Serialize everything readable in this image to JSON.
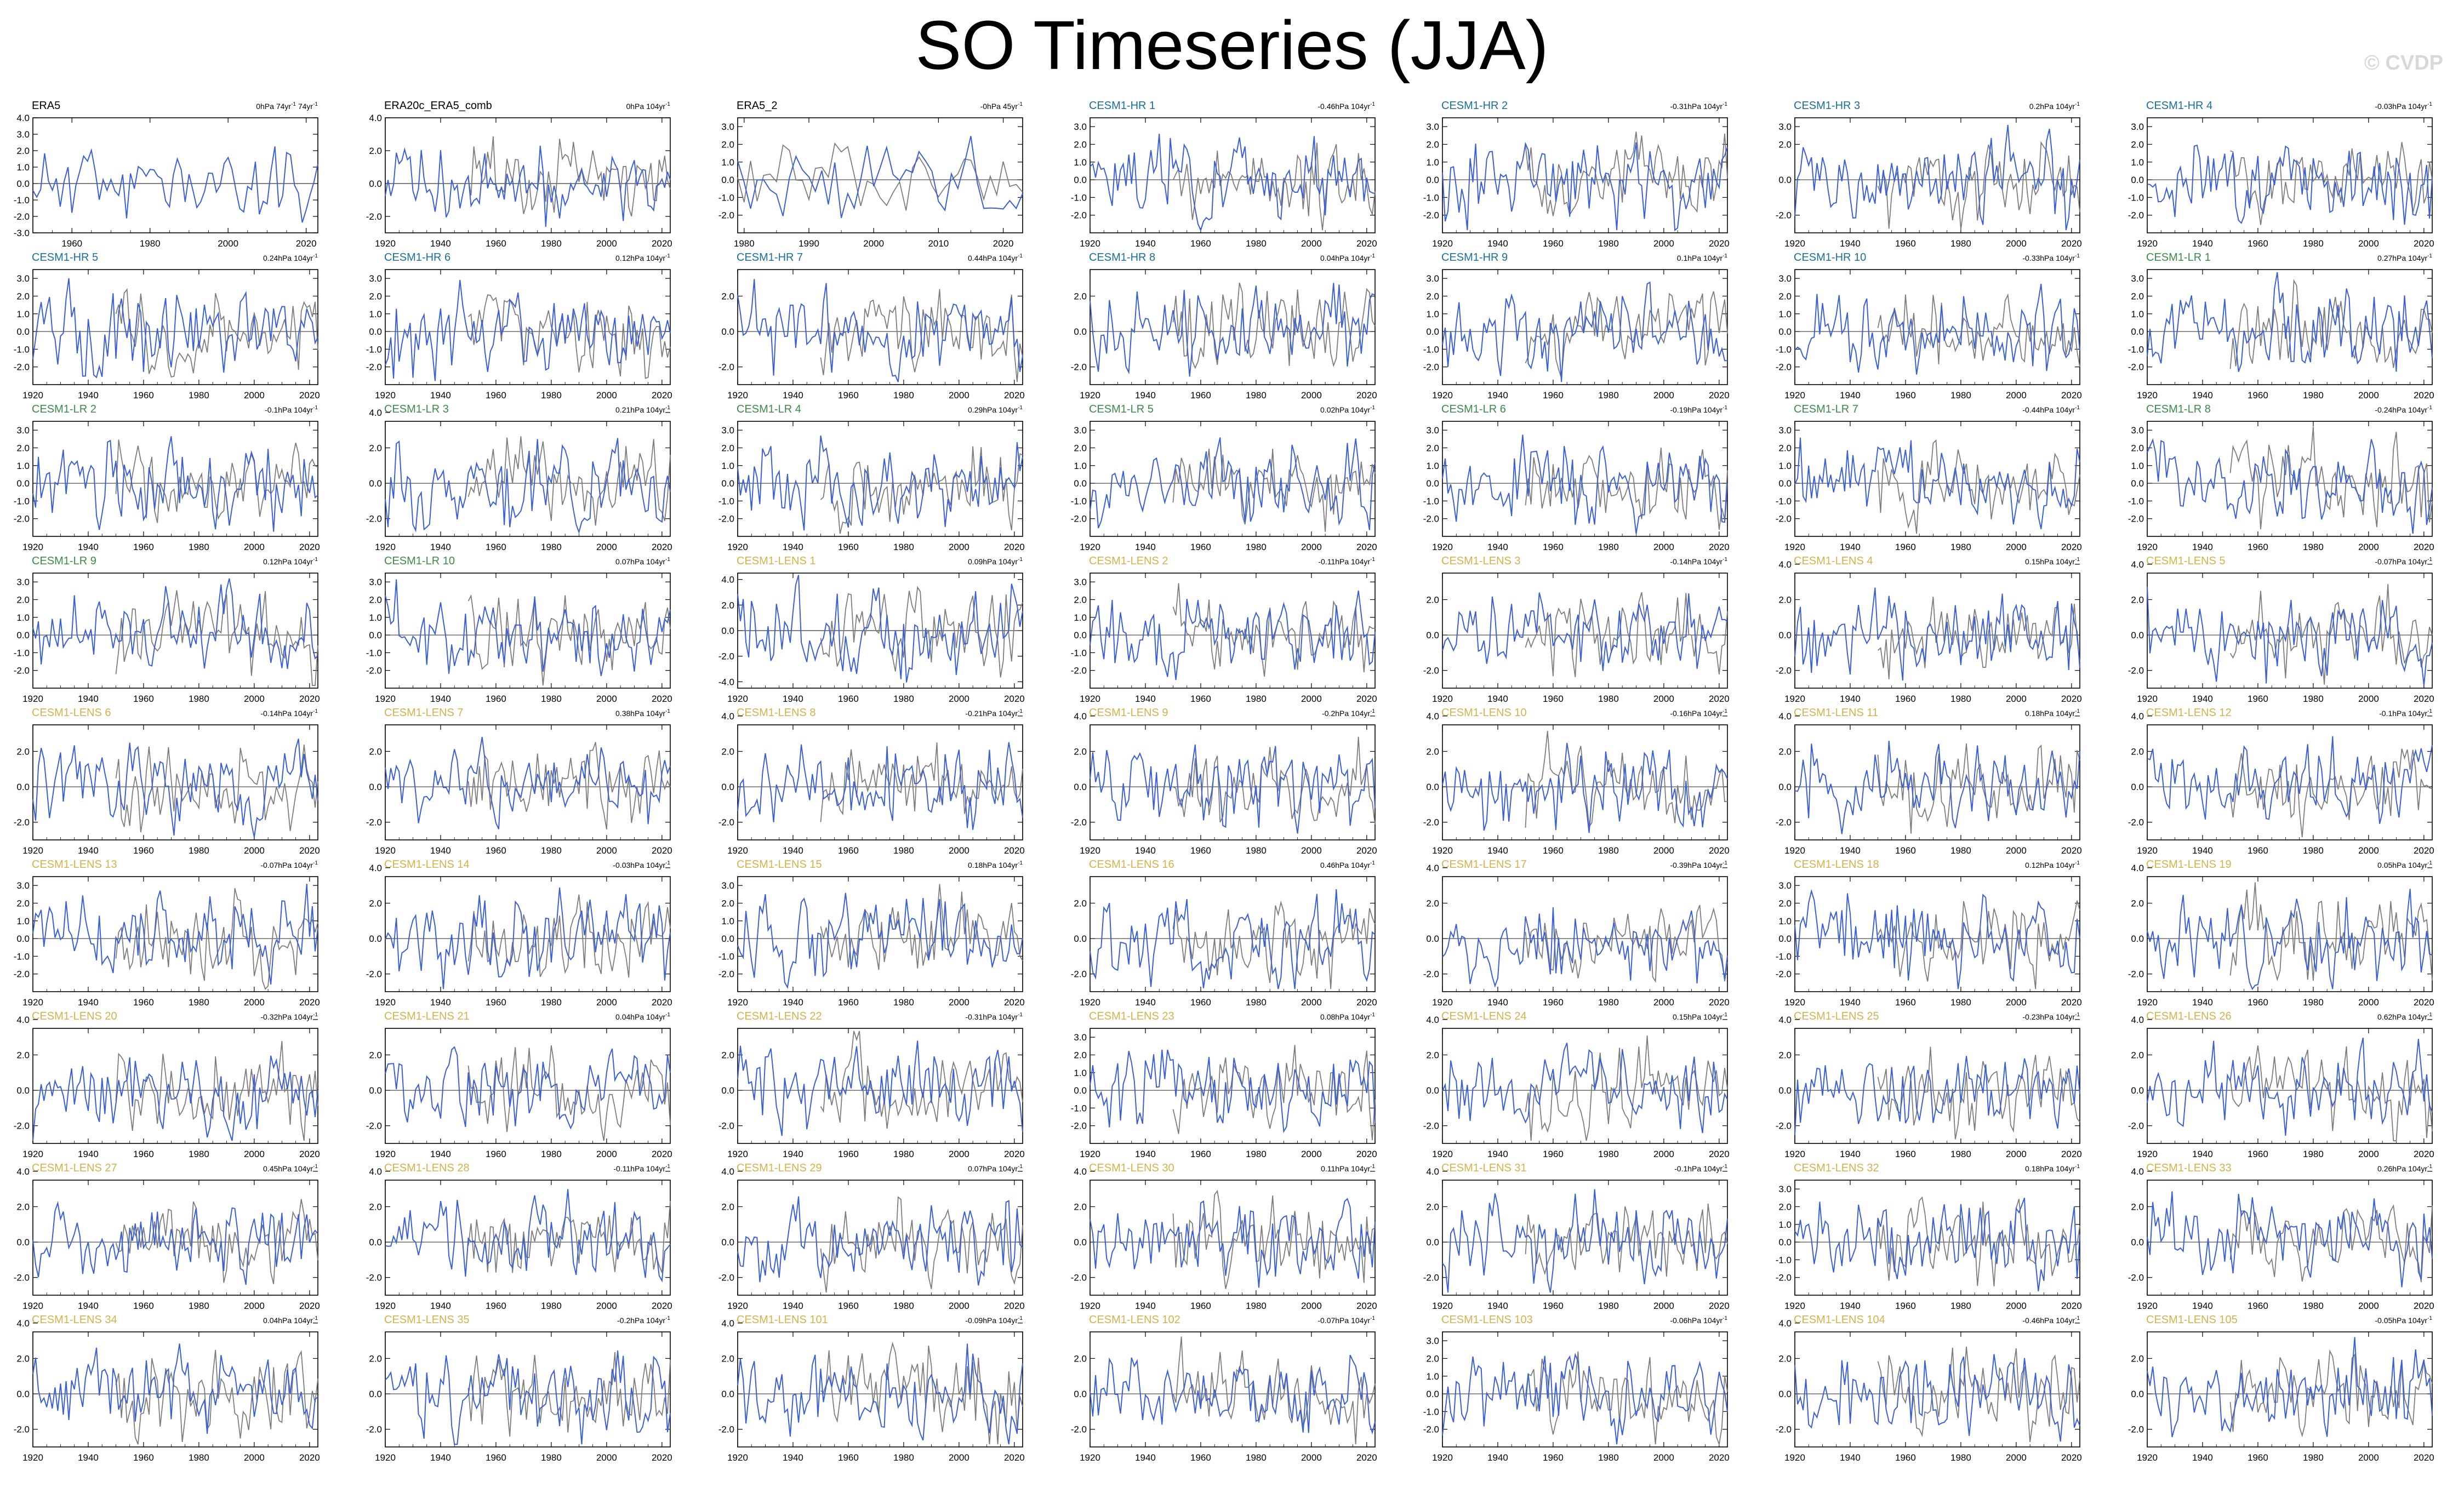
{
  "figure": {
    "title": "SO Timeseries (JJA)",
    "credit": "© CVDP"
  },
  "colors": {
    "observed": "#000000",
    "hr": "#1a6f9a",
    "lr": "#3a8a4a",
    "lens": "#d4b24a",
    "model_line": "#3a5fd6",
    "obs_line": "#7d7d7d"
  },
  "chart_data": {
    "type": "line",
    "units": "hPa",
    "panels": [
      {
        "title": "ERA5",
        "group": "observed",
        "trend_main": "0hPa 74yr",
        "trend_sup": "-1",
        "trend_main2": " 74yr",
        "trend_sup2": "-1",
        "x_range": [
          1950,
          2023
        ],
        "x_ticks": [
          1960,
          1980,
          2000,
          2020
        ],
        "y_range": [
          -3.0,
          4.0
        ],
        "y_ticks": [
          "4.0",
          "3.0",
          "2.0",
          "1.0",
          "0.0",
          "-1.0",
          "-2.0",
          "-3.0"
        ],
        "y_values": [
          4.0,
          3.0,
          2.0,
          1.0,
          0.0,
          -1.0,
          -2.0,
          -3.0
        ],
        "obs_overlay": false,
        "seed": 11
      },
      {
        "title": "ERA20c_ERA5_comb",
        "group": "observed",
        "trend_main": "0hPa 104yr",
        "trend_sup": "-1",
        "x_range": [
          1920,
          2023
        ],
        "x_ticks": [
          1920,
          1940,
          1960,
          1980,
          2000,
          2020
        ],
        "y_range": [
          -3.0,
          4.0
        ],
        "y_ticks": [
          "4.0",
          "2.0",
          "0.0",
          "-2.0"
        ],
        "y_values": [
          4.0,
          2.0,
          0.0,
          -2.0
        ],
        "obs_overlay": true,
        "seed": 12
      },
      {
        "title": "ERA5_2",
        "group": "observed",
        "trend_main": "-0hPa 45yr",
        "trend_sup": "-1",
        "x_range": [
          1979,
          2023
        ],
        "x_ticks": [
          1980,
          1990,
          2000,
          2010,
          2020
        ],
        "y_range": [
          -3.0,
          3.5
        ],
        "y_ticks": [
          "3.0",
          "2.0",
          "1.0",
          "0.0",
          "-1.0",
          "-2.0"
        ],
        "y_values": [
          3.0,
          2.0,
          1.0,
          0.0,
          -1.0,
          -2.0
        ],
        "obs_overlay": true,
        "seed": 13
      },
      {
        "title": "CESM1-HR 1",
        "group": "hr",
        "trend_main": "-0.46hPa 104yr",
        "trend_sup": "-1",
        "seed": 14
      },
      {
        "title": "CESM1-HR 2",
        "group": "hr",
        "trend_main": "-0.31hPa 104yr",
        "trend_sup": "-1",
        "seed": 15
      },
      {
        "title": "CESM1-HR 3",
        "group": "hr",
        "trend_main": "0.2hPa 104yr",
        "trend_sup": "-1",
        "y_ticks": [
          "3.0",
          "2.0",
          "0.0",
          "-2.0"
        ],
        "y_values": [
          3.0,
          2.0,
          0.0,
          -2.0
        ],
        "seed": 16
      },
      {
        "title": "CESM1-HR 4",
        "group": "hr",
        "trend_main": "-0.03hPa 104yr",
        "trend_sup": "-1",
        "seed": 17
      },
      {
        "title": "CESM1-HR 5",
        "group": "hr",
        "trend_main": "0.24hPa 104yr",
        "trend_sup": "-1",
        "seed": 21
      },
      {
        "title": "CESM1-HR 6",
        "group": "hr",
        "trend_main": "0.12hPa 104yr",
        "trend_sup": "-1",
        "seed": 22
      },
      {
        "title": "CESM1-HR 7",
        "group": "hr",
        "trend_main": "0.44hPa 104yr",
        "trend_sup": "-1",
        "y_ticks": [
          "2.0",
          "0.0",
          "-2.0"
        ],
        "y_values": [
          2.0,
          0.0,
          -2.0
        ],
        "seed": 23
      },
      {
        "title": "CESM1-HR 8",
        "group": "hr",
        "trend_main": "0.04hPa 104yr",
        "trend_sup": "-1",
        "y_ticks": [
          "2.0",
          "0.0",
          "-2.0"
        ],
        "y_values": [
          2.0,
          0.0,
          -2.0
        ],
        "seed": 24
      },
      {
        "title": "CESM1-HR 9",
        "group": "hr",
        "trend_main": "0.1hPa 104yr",
        "trend_sup": "-1",
        "seed": 25
      },
      {
        "title": "CESM1-HR 10",
        "group": "hr",
        "trend_main": "-0.33hPa 104yr",
        "trend_sup": "-1",
        "seed": 26
      },
      {
        "title": "CESM1-LR 1",
        "group": "lr",
        "trend_main": "0.27hPa 104yr",
        "trend_sup": "-1",
        "seed": 27
      },
      {
        "title": "CESM1-LR 2",
        "group": "lr",
        "trend_main": "-0.1hPa 104yr",
        "trend_sup": "-1",
        "seed": 31
      },
      {
        "title": "CESM1-LR 3",
        "group": "lr",
        "trend_main": "0.21hPa 104yr",
        "trend_sup": "-1",
        "y_ticks": [
          "4.0",
          "2.0",
          "0.0",
          "-2.0"
        ],
        "y_values": [
          4.0,
          2.0,
          0.0,
          -2.0
        ],
        "seed": 32
      },
      {
        "title": "CESM1-LR 4",
        "group": "lr",
        "trend_main": "0.29hPa 104yr",
        "trend_sup": "-1",
        "seed": 33
      },
      {
        "title": "CESM1-LR 5",
        "group": "lr",
        "trend_main": "0.02hPa 104yr",
        "trend_sup": "-1",
        "seed": 34
      },
      {
        "title": "CESM1-LR 6",
        "group": "lr",
        "trend_main": "-0.19hPa 104yr",
        "trend_sup": "-1",
        "seed": 35
      },
      {
        "title": "CESM1-LR 7",
        "group": "lr",
        "trend_main": "-0.44hPa 104yr",
        "trend_sup": "-1",
        "seed": 36
      },
      {
        "title": "CESM1-LR 8",
        "group": "lr",
        "trend_main": "-0.24hPa 104yr",
        "trend_sup": "-1",
        "seed": 37
      },
      {
        "title": "CESM1-LR 9",
        "group": "lr",
        "trend_main": "0.12hPa 104yr",
        "trend_sup": "-1",
        "seed": 41
      },
      {
        "title": "CESM1-LR 10",
        "group": "lr",
        "trend_main": "0.07hPa 104yr",
        "trend_sup": "-1",
        "seed": 42
      },
      {
        "title": "CESM1-LENS 1",
        "group": "lens",
        "trend_main": "0.09hPa 104yr",
        "trend_sup": "-1",
        "y_ticks": [
          "4.0",
          "2.0",
          "0.0",
          "-2.0",
          "-4.0"
        ],
        "y_values": [
          4.0,
          2.0,
          0.0,
          -2.0,
          -4.0
        ],
        "y_range": [
          -4.5,
          4.5
        ],
        "seed": 43
      },
      {
        "title": "CESM1-LENS 2",
        "group": "lens",
        "trend_main": "-0.11hPa 104yr",
        "trend_sup": "-1",
        "seed": 44
      },
      {
        "title": "CESM1-LENS 3",
        "group": "lens",
        "trend_main": "-0.14hPa 104yr",
        "trend_sup": "-1",
        "y_ticks": [
          "2.0",
          "0.0",
          "-2.0"
        ],
        "y_values": [
          2.0,
          0.0,
          -2.0
        ],
        "seed": 45
      },
      {
        "title": "CESM1-LENS 4",
        "group": "lens",
        "trend_main": "0.15hPa 104yr",
        "trend_sup": "-1",
        "y_ticks": [
          "4.0",
          "2.0",
          "0.0",
          "-2.0"
        ],
        "y_values": [
          4.0,
          2.0,
          0.0,
          -2.0
        ],
        "seed": 46
      },
      {
        "title": "CESM1-LENS 5",
        "group": "lens",
        "trend_main": "-0.07hPa 104yr",
        "trend_sup": "-1",
        "y_ticks": [
          "4.0",
          "2.0",
          "0.0",
          "-2.0"
        ],
        "y_values": [
          4.0,
          2.0,
          0.0,
          -2.0
        ],
        "seed": 47
      },
      {
        "title": "CESM1-LENS 6",
        "group": "lens",
        "trend_main": "-0.14hPa 104yr",
        "trend_sup": "-1",
        "y_ticks": [
          "2.0",
          "0.0",
          "-2.0"
        ],
        "y_values": [
          2.0,
          0.0,
          -2.0
        ],
        "seed": 51
      },
      {
        "title": "CESM1-LENS 7",
        "group": "lens",
        "trend_main": "0.38hPa 104yr",
        "trend_sup": "-1",
        "y_ticks": [
          "2.0",
          "0.0",
          "-2.0"
        ],
        "y_values": [
          2.0,
          0.0,
          -2.0
        ],
        "seed": 52
      },
      {
        "title": "CESM1-LENS 8",
        "group": "lens",
        "trend_main": "-0.21hPa 104yr",
        "trend_sup": "-1",
        "y_ticks": [
          "4.0",
          "2.0",
          "0.0",
          "-2.0"
        ],
        "y_values": [
          4.0,
          2.0,
          0.0,
          -2.0
        ],
        "seed": 53
      },
      {
        "title": "CESM1-LENS 9",
        "group": "lens",
        "trend_main": "-0.2hPa 104yr",
        "trend_sup": "-1",
        "y_ticks": [
          "4.0",
          "2.0",
          "0.0",
          "-2.0"
        ],
        "y_values": [
          4.0,
          2.0,
          0.0,
          -2.0
        ],
        "seed": 54
      },
      {
        "title": "CESM1-LENS 10",
        "group": "lens",
        "trend_main": "-0.16hPa 104yr",
        "trend_sup": "-1",
        "y_ticks": [
          "4.0",
          "2.0",
          "0.0",
          "-2.0"
        ],
        "y_values": [
          4.0,
          2.0,
          0.0,
          -2.0
        ],
        "seed": 55
      },
      {
        "title": "CESM1-LENS 11",
        "group": "lens",
        "trend_main": "0.18hPa 104yr",
        "trend_sup": "-1",
        "y_ticks": [
          "4.0",
          "2.0",
          "0.0",
          "-2.0"
        ],
        "y_values": [
          4.0,
          2.0,
          0.0,
          -2.0
        ],
        "seed": 56
      },
      {
        "title": "CESM1-LENS 12",
        "group": "lens",
        "trend_main": "-0.1hPa 104yr",
        "trend_sup": "-1",
        "y_ticks": [
          "4.0",
          "2.0",
          "0.0",
          "-2.0"
        ],
        "y_values": [
          4.0,
          2.0,
          0.0,
          -2.0
        ],
        "seed": 57
      },
      {
        "title": "CESM1-LENS 13",
        "group": "lens",
        "trend_main": "-0.07hPa 104yr",
        "trend_sup": "-1",
        "seed": 61
      },
      {
        "title": "CESM1-LENS 14",
        "group": "lens",
        "trend_main": "-0.03hPa 104yr",
        "trend_sup": "-1",
        "y_ticks": [
          "4.0",
          "2.0",
          "0.0",
          "-2.0"
        ],
        "y_values": [
          4.0,
          2.0,
          0.0,
          -2.0
        ],
        "seed": 62
      },
      {
        "title": "CESM1-LENS 15",
        "group": "lens",
        "trend_main": "0.18hPa 104yr",
        "trend_sup": "-1",
        "seed": 63
      },
      {
        "title": "CESM1-LENS 16",
        "group": "lens",
        "trend_main": "0.46hPa 104yr",
        "trend_sup": "-1",
        "y_ticks": [
          "2.0",
          "0.0",
          "-2.0"
        ],
        "y_values": [
          2.0,
          0.0,
          -2.0
        ],
        "seed": 64
      },
      {
        "title": "CESM1-LENS 17",
        "group": "lens",
        "trend_main": "-0.39hPa 104yr",
        "trend_sup": "-1",
        "y_ticks": [
          "4.0",
          "2.0",
          "0.0",
          "-2.0"
        ],
        "y_values": [
          4.0,
          2.0,
          0.0,
          -2.0
        ],
        "seed": 65
      },
      {
        "title": "CESM1-LENS 18",
        "group": "lens",
        "trend_main": "0.12hPa 104yr",
        "trend_sup": "-1",
        "seed": 66
      },
      {
        "title": "CESM1-LENS 19",
        "group": "lens",
        "trend_main": "0.05hPa 104yr",
        "trend_sup": "-1",
        "y_ticks": [
          "4.0",
          "2.0",
          "0.0",
          "-2.0"
        ],
        "y_values": [
          4.0,
          2.0,
          0.0,
          -2.0
        ],
        "seed": 67
      },
      {
        "title": "CESM1-LENS 20",
        "group": "lens",
        "trend_main": "-0.32hPa 104yr",
        "trend_sup": "-1",
        "y_ticks": [
          "4.0",
          "2.0",
          "0.0",
          "-2.0"
        ],
        "y_values": [
          4.0,
          2.0,
          0.0,
          -2.0
        ],
        "seed": 71
      },
      {
        "title": "CESM1-LENS 21",
        "group": "lens",
        "trend_main": "0.04hPa 104yr",
        "trend_sup": "-1",
        "y_ticks": [
          "2.0",
          "0.0",
          "-2.0"
        ],
        "y_values": [
          2.0,
          0.0,
          -2.0
        ],
        "seed": 72
      },
      {
        "title": "CESM1-LENS 22",
        "group": "lens",
        "trend_main": "-0.31hPa 104yr",
        "trend_sup": "-1",
        "y_ticks": [
          "2.0",
          "0.0",
          "-2.0"
        ],
        "y_values": [
          2.0,
          0.0,
          -2.0
        ],
        "seed": 73
      },
      {
        "title": "CESM1-LENS 23",
        "group": "lens",
        "trend_main": "0.08hPa 104yr",
        "trend_sup": "-1",
        "seed": 74
      },
      {
        "title": "CESM1-LENS 24",
        "group": "lens",
        "trend_main": "0.15hPa 104yr",
        "trend_sup": "-1",
        "y_ticks": [
          "4.0",
          "2.0",
          "0.0",
          "-2.0"
        ],
        "y_values": [
          4.0,
          2.0,
          0.0,
          -2.0
        ],
        "seed": 75
      },
      {
        "title": "CESM1-LENS 25",
        "group": "lens",
        "trend_main": "-0.23hPa 104yr",
        "trend_sup": "-1",
        "y_ticks": [
          "4.0",
          "2.0",
          "0.0",
          "-2.0"
        ],
        "y_values": [
          4.0,
          2.0,
          0.0,
          -2.0
        ],
        "seed": 76
      },
      {
        "title": "CESM1-LENS 26",
        "group": "lens",
        "trend_main": "0.62hPa 104yr",
        "trend_sup": "-1",
        "y_ticks": [
          "4.0",
          "2.0",
          "0.0",
          "-2.0"
        ],
        "y_values": [
          4.0,
          2.0,
          0.0,
          -2.0
        ],
        "seed": 77
      },
      {
        "title": "CESM1-LENS 27",
        "group": "lens",
        "trend_main": "0.45hPa 104yr",
        "trend_sup": "-1",
        "y_ticks": [
          "4.0",
          "2.0",
          "0.0",
          "-2.0"
        ],
        "y_values": [
          4.0,
          2.0,
          0.0,
          -2.0
        ],
        "seed": 81
      },
      {
        "title": "CESM1-LENS 28",
        "group": "lens",
        "trend_main": "-0.11hPa 104yr",
        "trend_sup": "-1",
        "y_ticks": [
          "4.0",
          "2.0",
          "0.0",
          "-2.0"
        ],
        "y_values": [
          4.0,
          2.0,
          0.0,
          -2.0
        ],
        "seed": 82
      },
      {
        "title": "CESM1-LENS 29",
        "group": "lens",
        "trend_main": "0.07hPa 104yr",
        "trend_sup": "-1",
        "y_ticks": [
          "4.0",
          "2.0",
          "0.0",
          "-2.0"
        ],
        "y_values": [
          4.0,
          2.0,
          0.0,
          -2.0
        ],
        "seed": 83
      },
      {
        "title": "CESM1-LENS 30",
        "group": "lens",
        "trend_main": "0.11hPa 104yr",
        "trend_sup": "-1",
        "y_ticks": [
          "4.0",
          "2.0",
          "0.0",
          "-2.0"
        ],
        "y_values": [
          4.0,
          2.0,
          0.0,
          -2.0
        ],
        "seed": 84
      },
      {
        "title": "CESM1-LENS 31",
        "group": "lens",
        "trend_main": "-0.1hPa 104yr",
        "trend_sup": "-1",
        "y_ticks": [
          "4.0",
          "2.0",
          "0.0",
          "-2.0"
        ],
        "y_values": [
          4.0,
          2.0,
          0.0,
          -2.0
        ],
        "seed": 85
      },
      {
        "title": "CESM1-LENS 32",
        "group": "lens",
        "trend_main": "0.18hPa 104yr",
        "trend_sup": "-1",
        "seed": 86
      },
      {
        "title": "CESM1-LENS 33",
        "group": "lens",
        "trend_main": "0.26hPa 104yr",
        "trend_sup": "-1",
        "y_ticks": [
          "4.0",
          "2.0",
          "0.0",
          "-2.0"
        ],
        "y_values": [
          4.0,
          2.0,
          0.0,
          -2.0
        ],
        "seed": 87
      },
      {
        "title": "CESM1-LENS 34",
        "group": "lens",
        "trend_main": "0.04hPa 104yr",
        "trend_sup": "-1",
        "y_ticks": [
          "4.0",
          "2.0",
          "0.0",
          "-2.0"
        ],
        "y_values": [
          4.0,
          2.0,
          0.0,
          -2.0
        ],
        "seed": 91
      },
      {
        "title": "CESM1-LENS 35",
        "group": "lens",
        "trend_main": "-0.2hPa 104yr",
        "trend_sup": "-1",
        "y_ticks": [
          "2.0",
          "0.0",
          "-2.0"
        ],
        "y_values": [
          2.0,
          0.0,
          -2.0
        ],
        "seed": 92
      },
      {
        "title": "CESM1-LENS 101",
        "group": "lens",
        "trend_main": "-0.09hPa 104yr",
        "trend_sup": "-1",
        "y_ticks": [
          "4.0",
          "2.0",
          "0.0",
          "-2.0"
        ],
        "y_values": [
          4.0,
          2.0,
          0.0,
          -2.0
        ],
        "seed": 93
      },
      {
        "title": "CESM1-LENS 102",
        "group": "lens",
        "trend_main": "-0.07hPa 104yr",
        "trend_sup": "-1",
        "y_ticks": [
          "2.0",
          "0.0",
          "-2.0"
        ],
        "y_values": [
          2.0,
          0.0,
          -2.0
        ],
        "seed": 94
      },
      {
        "title": "CESM1-LENS 103",
        "group": "lens",
        "trend_main": "-0.06hPa 104yr",
        "trend_sup": "-1",
        "seed": 95
      },
      {
        "title": "CESM1-LENS 104",
        "group": "lens",
        "trend_main": "-0.46hPa 104yr",
        "trend_sup": "-1",
        "y_ticks": [
          "4.0",
          "2.0",
          "0.0",
          "-2.0"
        ],
        "y_values": [
          4.0,
          2.0,
          0.0,
          -2.0
        ],
        "seed": 96
      },
      {
        "title": "CESM1-LENS 105",
        "group": "lens",
        "trend_main": "-0.05hPa 104yr",
        "trend_sup": "-1",
        "y_ticks": [
          "2.0",
          "0.0",
          "-2.0"
        ],
        "y_values": [
          2.0,
          0.0,
          -2.0
        ],
        "seed": 97
      }
    ],
    "defaults": {
      "x_range": [
        1920,
        2023
      ],
      "x_ticks": [
        1920,
        1940,
        1960,
        1980,
        2000,
        2020
      ],
      "y_range": [
        -3.0,
        3.5
      ],
      "y_ticks": [
        "3.0",
        "2.0",
        "1.0",
        "0.0",
        "-1.0",
        "-2.0"
      ],
      "y_values": [
        3.0,
        2.0,
        1.0,
        0.0,
        -1.0,
        -2.0
      ],
      "obs_overlay": true
    }
  }
}
